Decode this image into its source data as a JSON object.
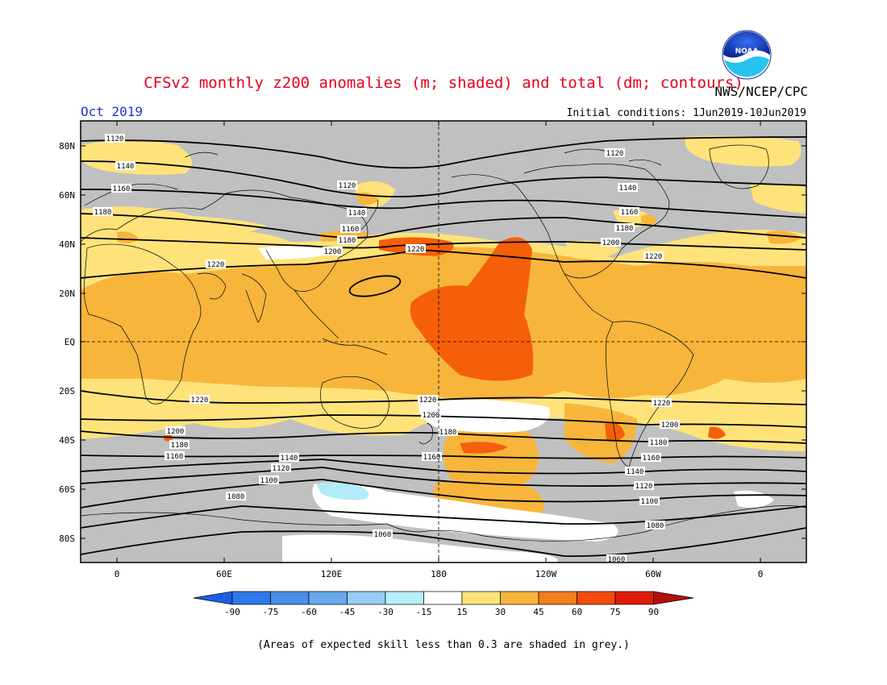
{
  "header": {
    "title": "CFSv2 monthly z200 anomalies (m; shaded) and total (dm; contours)",
    "credit": "NWS/NCEP/CPC",
    "logo_text": "NOAA",
    "period": "Oct 2019",
    "initial_conditions": "Initial conditions: 1Jun2019-10Jun2019"
  },
  "map": {
    "lat_labels": [
      "80N",
      "60N",
      "40N",
      "20N",
      "EQ",
      "20S",
      "40S",
      "60S",
      "80S"
    ],
    "lon_labels": [
      "0",
      "60E",
      "120E",
      "180",
      "120W",
      "60W",
      "0"
    ],
    "contours": [
      {
        "value": 1220,
        "label": "1220"
      },
      {
        "value": 1200,
        "label": "1200"
      },
      {
        "value": 1180,
        "label": "1180"
      },
      {
        "value": 1160,
        "label": "1160"
      },
      {
        "value": 1140,
        "label": "1140"
      },
      {
        "value": 1120,
        "label": "1120"
      },
      {
        "value": 1100,
        "label": "1100"
      },
      {
        "value": 1080,
        "label": "1080"
      },
      {
        "value": 1060,
        "label": "1060"
      }
    ],
    "colors": {
      "grey_mask": "#c0c0c0",
      "anom_15_30": "#ffe37a",
      "anom_30_45": "#f8b53c",
      "anom_45_60": "#f55f0a",
      "anom_neg15_neg30": "#b0ecf8",
      "neutral": "#ffffff"
    }
  },
  "colorbar": {
    "labels": [
      "-90",
      "-75",
      "-60",
      "-45",
      "-30",
      "-15",
      "15",
      "30",
      "45",
      "60",
      "75",
      "90"
    ],
    "colors": [
      "#1a60e6",
      "#2e78ea",
      "#4a8ee8",
      "#6aa8ec",
      "#98ccf4",
      "#b8eef8",
      "#ffffff",
      "#ffe37a",
      "#f8b53c",
      "#f47d1c",
      "#f44a0a",
      "#e01b0b",
      "#b0100a"
    ]
  },
  "footnote": "(Areas of expected skill less than 0.3 are shaded in grey.)"
}
